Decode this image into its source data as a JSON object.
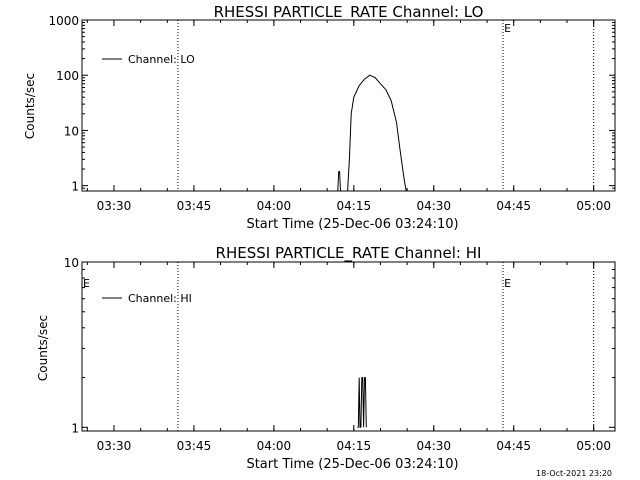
{
  "chart_data": [
    {
      "type": "line",
      "title": "RHESSI PARTICLE_RATE Channel: LO",
      "xlabel": "Start Time (25-Dec-06 03:24:10)",
      "ylabel": "Counts/sec",
      "yscale": "log",
      "ylim": [
        0.8,
        1000
      ],
      "yticks": [
        1,
        10,
        100,
        1000
      ],
      "ytick_labels": [
        "1",
        "10",
        "100",
        "1000"
      ],
      "xlim": [
        "03:24",
        "05:04"
      ],
      "xticks": [
        "03:30",
        "03:45",
        "04:00",
        "04:15",
        "04:30",
        "04:45",
        "05:00"
      ],
      "vlines": [
        "03:42",
        "04:43",
        "05:00"
      ],
      "markers": [
        {
          "text": "E",
          "x": "04:43"
        }
      ],
      "legend": {
        "entries": [
          "Channel: LO"
        ],
        "placement": "top-left"
      },
      "series": [
        {
          "name": "Channel: LO",
          "x": [
            "04:12:00",
            "04:12:10",
            "04:12:20",
            "04:12:30",
            "04:13:50",
            "04:14:10",
            "04:14:30",
            "04:15:00",
            "04:16:00",
            "04:17:00",
            "04:18:00",
            "04:19:00",
            "04:20:00",
            "04:21:00",
            "04:22:00",
            "04:23:00",
            "04:23:40",
            "04:24:10",
            "04:24:30",
            "04:24:50"
          ],
          "y": [
            0.8,
            1.8,
            1.8,
            0.8,
            0.8,
            3,
            20,
            40,
            65,
            85,
            100,
            90,
            70,
            55,
            35,
            14,
            4.5,
            2,
            1.2,
            0.8
          ]
        }
      ]
    },
    {
      "type": "line",
      "title": "RHESSI PARTICLE_RATE Channel: HI",
      "xlabel": "Start Time (25-Dec-06 03:24:10)",
      "ylabel": "Counts/sec",
      "yscale": "log",
      "ylim": [
        0.95,
        10
      ],
      "yticks": [
        1,
        10
      ],
      "ytick_labels": [
        "1",
        "10"
      ],
      "xlim": [
        "03:24",
        "05:04"
      ],
      "xticks": [
        "03:30",
        "03:45",
        "04:00",
        "04:15",
        "04:30",
        "04:45",
        "05:00"
      ],
      "vlines": [
        "03:42",
        "04:43",
        "05:00"
      ],
      "markers": [
        {
          "text": "E",
          "x": "03:24"
        },
        {
          "text": "E",
          "x": "04:43"
        }
      ],
      "legend": {
        "entries": [
          "Channel: HI"
        ],
        "placement": "top-left"
      },
      "series": [
        {
          "name": "Channel: HI",
          "x": [
            "04:15:40",
            "04:15:50",
            "04:16:00",
            "04:16:10",
            "04:16:20",
            "04:16:30",
            "04:16:40",
            "04:16:50",
            "04:17:00",
            "04:17:10",
            "04:17:20"
          ],
          "y": [
            1,
            1,
            2,
            1,
            1,
            2,
            2,
            1,
            2,
            2,
            1
          ]
        }
      ]
    }
  ],
  "footer": {
    "timestamp": "18-Oct-2021 23:20"
  }
}
